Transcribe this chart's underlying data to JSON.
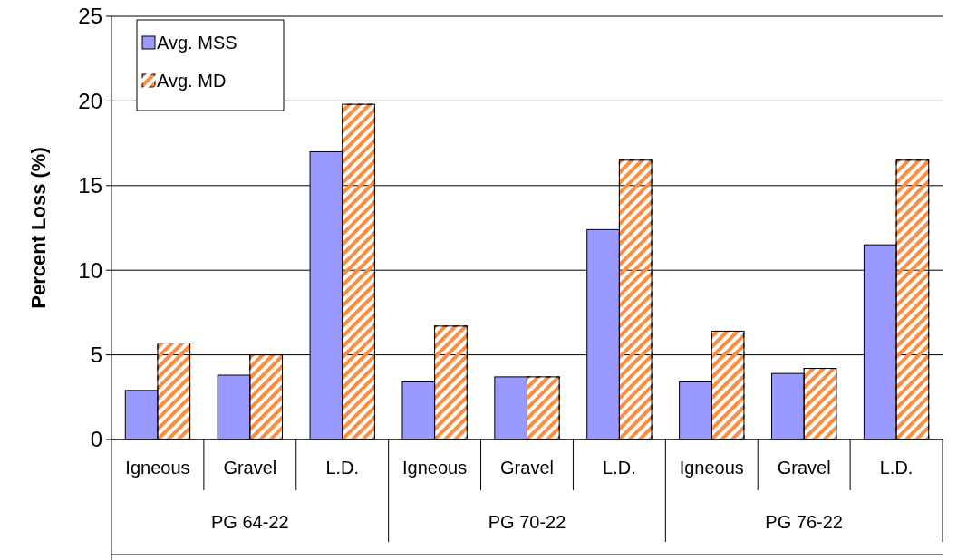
{
  "chart_data": {
    "type": "bar",
    "ylabel": "Percent Loss (%)",
    "categories": [
      "Igneous",
      "Gravel",
      "L.D.",
      "Igneous",
      "Gravel",
      "L.D.",
      "Igneous",
      "Gravel",
      "L.D."
    ],
    "series": [
      {
        "name": "Avg. MSS",
        "color": "#9999ff",
        "values": [
          2.9,
          3.8,
          17.0,
          3.4,
          3.7,
          12.4,
          3.4,
          3.9,
          11.5
        ]
      },
      {
        "name": "Avg. MD",
        "color": "#ff8c3c",
        "values": [
          5.7,
          5.0,
          19.8,
          6.7,
          3.7,
          16.5,
          6.4,
          4.2,
          16.5
        ]
      }
    ],
    "annotations": [
      "PG 64-22",
      "PG 70-22",
      "PG 76-22"
    ],
    "ylim": [
      0,
      25
    ],
    "yticks": [
      0,
      5,
      10,
      15,
      20,
      25
    ],
    "grid": "y",
    "legend": "top left"
  }
}
